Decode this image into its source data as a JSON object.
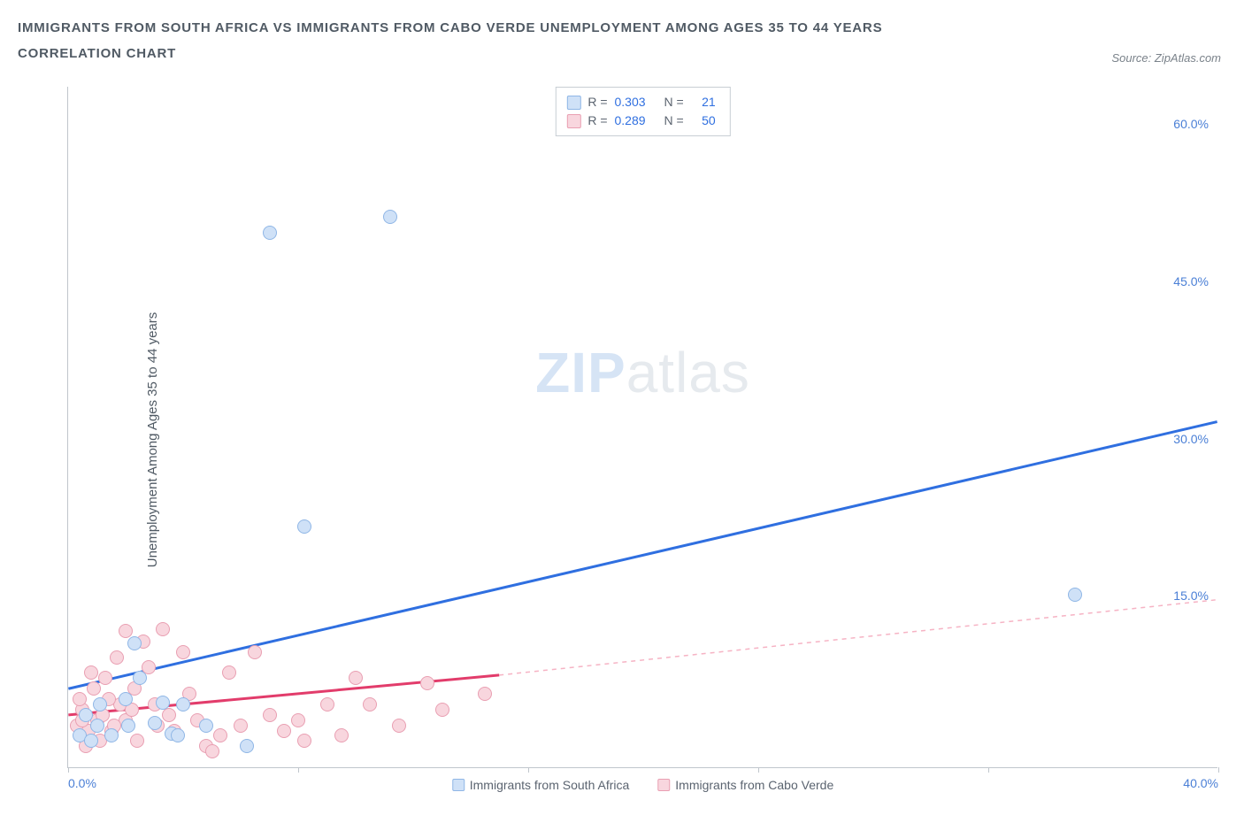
{
  "title_line1": "IMMIGRANTS FROM SOUTH AFRICA VS IMMIGRANTS FROM CABO VERDE UNEMPLOYMENT AMONG AGES 35 TO 44 YEARS",
  "title_line2": "CORRELATION CHART",
  "source_label": "Source: ZipAtlas.com",
  "ylabel": "Unemployment Among Ages 35 to 44 years",
  "watermark_a": "ZIP",
  "watermark_b": "atlas",
  "chart": {
    "type": "scatter",
    "background_color": "#ffffff",
    "axis_color": "#c0c6cc",
    "tick_label_color": "#4a7fd6",
    "tick_fontsize": 14,
    "label_fontsize": 15,
    "xlim": [
      0,
      40
    ],
    "ylim": [
      0,
      65
    ],
    "xticks": [
      0,
      8,
      16,
      24,
      32,
      40
    ],
    "yticks": [
      15,
      30,
      45,
      60
    ],
    "xtick_labels": [
      "0.0%",
      "",
      "",
      "",
      "",
      "40.0%"
    ],
    "ytick_labels": [
      "15.0%",
      "30.0%",
      "45.0%",
      "60.0%"
    ],
    "series": [
      {
        "name": "Immigrants from South Africa",
        "fill": "#cfe1f7",
        "stroke": "#8fb6e6",
        "marker_radius": 8,
        "R": "0.303",
        "N": "21",
        "trend": {
          "x1": 0,
          "y1": 7.5,
          "x2": 40,
          "y2": 33.0,
          "stroke": "#2f6fe0",
          "width": 3,
          "dash": ""
        },
        "points": [
          [
            7.0,
            51.0
          ],
          [
            11.2,
            52.5
          ],
          [
            8.2,
            23.0
          ],
          [
            35.0,
            16.5
          ],
          [
            2.3,
            11.8
          ],
          [
            1.1,
            6.0
          ],
          [
            2.1,
            4.0
          ],
          [
            3.0,
            4.2
          ],
          [
            1.5,
            3.0
          ],
          [
            3.6,
            3.2
          ],
          [
            3.3,
            6.2
          ],
          [
            4.8,
            4.0
          ],
          [
            2.5,
            8.5
          ],
          [
            4.0,
            6.0
          ],
          [
            1.0,
            4.0
          ],
          [
            0.6,
            5.0
          ],
          [
            0.4,
            3.0
          ],
          [
            2.0,
            6.5
          ],
          [
            6.2,
            2.0
          ],
          [
            3.8,
            3.0
          ],
          [
            0.8,
            2.5
          ]
        ]
      },
      {
        "name": "Immigrants from Cabo Verde",
        "fill": "#f8d6de",
        "stroke": "#e99fb2",
        "marker_radius": 8,
        "R": "0.289",
        "N": "50",
        "trend": {
          "x1": 0,
          "y1": 5.0,
          "x2": 15,
          "y2": 8.8,
          "stroke": "#e23c6b",
          "width": 3,
          "dash": ""
        },
        "trend_ext": {
          "x1": 15,
          "y1": 8.8,
          "x2": 40,
          "y2": 16.0,
          "stroke": "#f6b3c4",
          "width": 1.5,
          "dash": "5,5"
        },
        "points": [
          [
            0.3,
            4.0
          ],
          [
            0.5,
            5.5
          ],
          [
            0.7,
            3.5
          ],
          [
            0.4,
            6.5
          ],
          [
            0.9,
            7.5
          ],
          [
            1.0,
            4.5
          ],
          [
            1.2,
            5.0
          ],
          [
            1.3,
            8.5
          ],
          [
            1.5,
            3.5
          ],
          [
            1.7,
            10.5
          ],
          [
            1.8,
            6.0
          ],
          [
            2.0,
            4.5
          ],
          [
            2.0,
            13.0
          ],
          [
            2.2,
            5.5
          ],
          [
            2.4,
            2.5
          ],
          [
            2.6,
            12.0
          ],
          [
            2.8,
            9.5
          ],
          [
            3.0,
            6.0
          ],
          [
            3.1,
            4.0
          ],
          [
            3.3,
            13.2
          ],
          [
            3.5,
            5.0
          ],
          [
            3.7,
            3.5
          ],
          [
            4.0,
            11.0
          ],
          [
            4.2,
            7.0
          ],
          [
            4.5,
            4.5
          ],
          [
            4.8,
            2.0
          ],
          [
            5.0,
            1.5
          ],
          [
            5.3,
            3.0
          ],
          [
            5.6,
            9.0
          ],
          [
            6.0,
            4.0
          ],
          [
            6.5,
            11.0
          ],
          [
            7.0,
            5.0
          ],
          [
            7.5,
            3.5
          ],
          [
            8.0,
            4.5
          ],
          [
            8.2,
            2.5
          ],
          [
            9.0,
            6.0
          ],
          [
            9.5,
            3.0
          ],
          [
            10.0,
            8.5
          ],
          [
            10.5,
            6.0
          ],
          [
            11.5,
            4.0
          ],
          [
            12.5,
            8.0
          ],
          [
            13.0,
            5.5
          ],
          [
            14.5,
            7.0
          ],
          [
            0.6,
            2.0
          ],
          [
            1.1,
            2.5
          ],
          [
            1.4,
            6.5
          ],
          [
            0.8,
            9.0
          ],
          [
            2.3,
            7.5
          ],
          [
            1.6,
            4.0
          ],
          [
            0.5,
            4.5
          ]
        ]
      }
    ],
    "legend_top": {
      "border_color": "#c8ced4",
      "r_label": "R =",
      "n_label": "N ="
    },
    "legend_bottom": [
      {
        "swatch_fill": "#cfe1f7",
        "swatch_stroke": "#8fb6e6",
        "label": "Immigrants from South Africa"
      },
      {
        "swatch_fill": "#f8d6de",
        "swatch_stroke": "#e99fb2",
        "label": "Immigrants from Cabo Verde"
      }
    ]
  }
}
